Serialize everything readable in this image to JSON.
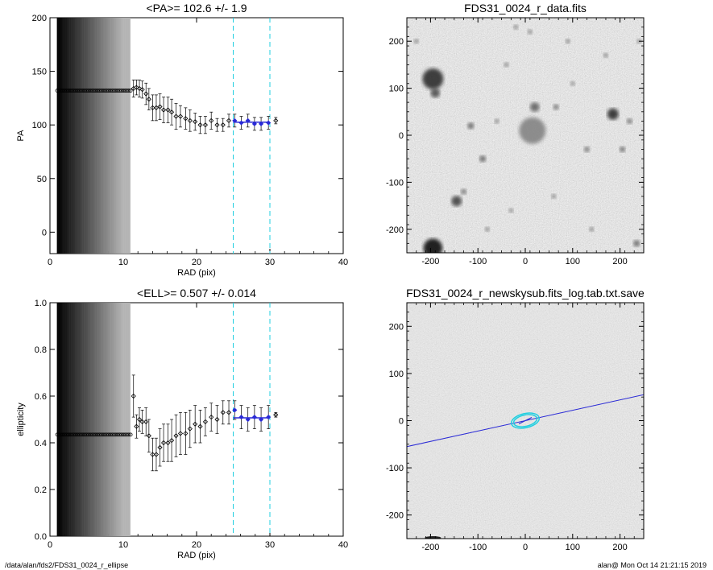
{
  "footer": {
    "path": "/data/alan/fds2/FDS31_0024_r_ellipse",
    "stamp": "alan@  Mon Oct 14 21:21:15 2019"
  },
  "chart_data": [
    {
      "type": "scatter",
      "title": "<PA>= 102.6 +/-   1.9",
      "xlabel": "RAD (pix)",
      "ylabel": "PA",
      "xlim": [
        0,
        40
      ],
      "ylim": [
        -20,
        200
      ],
      "xticks": [
        0,
        10,
        20,
        30,
        40
      ],
      "yticks": [
        0,
        50,
        100,
        150,
        200
      ],
      "vlines": [
        25,
        30
      ],
      "fit_mean": 102.6,
      "fit_err": 1.9,
      "fit_range": [
        25,
        30
      ],
      "inner_level": 132,
      "inner_range": [
        1,
        11
      ],
      "errorbars": true,
      "x": [
        11.4,
        11.8,
        12.2,
        12.6,
        13.1,
        13.5,
        14.0,
        14.5,
        15.0,
        15.5,
        16.1,
        16.6,
        17.2,
        17.8,
        18.5,
        19.1,
        19.8,
        20.5,
        21.2,
        22.0,
        22.8,
        23.6,
        24.4,
        25.2,
        26.1,
        27.0,
        27.9,
        28.8,
        29.8,
        30.8
      ],
      "y": [
        134,
        135,
        134,
        133,
        129,
        124,
        116,
        116,
        117,
        114,
        114,
        112,
        108,
        108,
        106,
        104,
        103,
        100,
        100,
        104,
        100,
        100,
        104,
        104,
        102,
        104,
        101,
        101,
        102,
        104
      ],
      "err": [
        8,
        7,
        8,
        8,
        10,
        10,
        12,
        12,
        12,
        12,
        12,
        12,
        12,
        10,
        10,
        10,
        8,
        8,
        8,
        8,
        6,
        6,
        6,
        6,
        6,
        6,
        6,
        6,
        6,
        3
      ]
    },
    {
      "type": "scatter",
      "title": "<ELL>= 0.507 +/-  0.014",
      "xlabel": "RAD (pix)",
      "ylabel": "ellipticity",
      "xlim": [
        0,
        40
      ],
      "ylim": [
        0.0,
        1.0
      ],
      "xticks": [
        0,
        10,
        20,
        30,
        40
      ],
      "yticks": [
        0.0,
        0.2,
        0.4,
        0.6,
        0.8,
        1.0
      ],
      "ytick_labels": [
        "0.0",
        "0.2",
        "0.4",
        "0.6",
        "0.8",
        "1.0"
      ],
      "vlines": [
        25,
        30
      ],
      "fit_mean": 0.507,
      "fit_err": 0.014,
      "fit_range": [
        25,
        30
      ],
      "inner_level": 0.435,
      "inner_range": [
        1,
        11
      ],
      "errorbars": true,
      "x": [
        11.4,
        11.8,
        12.2,
        12.6,
        13.1,
        13.5,
        14.0,
        14.5,
        15.0,
        15.5,
        16.1,
        16.6,
        17.2,
        17.8,
        18.5,
        19.1,
        19.8,
        20.5,
        21.2,
        22.0,
        22.8,
        23.6,
        24.4,
        25.2,
        26.1,
        27.0,
        27.9,
        28.8,
        29.8,
        30.8
      ],
      "y": [
        0.6,
        0.47,
        0.5,
        0.49,
        0.49,
        0.43,
        0.35,
        0.35,
        0.38,
        0.4,
        0.4,
        0.41,
        0.43,
        0.44,
        0.44,
        0.46,
        0.48,
        0.47,
        0.49,
        0.51,
        0.5,
        0.53,
        0.53,
        0.54,
        0.51,
        0.5,
        0.51,
        0.5,
        0.51,
        0.52
      ],
      "err": [
        0.09,
        0.05,
        0.05,
        0.05,
        0.06,
        0.07,
        0.07,
        0.07,
        0.08,
        0.08,
        0.08,
        0.09,
        0.09,
        0.09,
        0.09,
        0.08,
        0.08,
        0.07,
        0.06,
        0.06,
        0.06,
        0.05,
        0.05,
        0.04,
        0.05,
        0.05,
        0.05,
        0.05,
        0.05,
        0.01
      ]
    },
    {
      "type": "heatmap",
      "title": "FDS31_0024_r_data.fits",
      "xlim": [
        -250,
        250
      ],
      "ylim": [
        -250,
        250
      ],
      "xticks": [
        -200,
        -100,
        0,
        100,
        200
      ],
      "yticks": [
        -200,
        -100,
        0,
        100,
        200
      ],
      "sources": [
        {
          "x": -195,
          "y": 120,
          "r": 22,
          "v": 0.85
        },
        {
          "x": -190,
          "y": 90,
          "r": 10,
          "v": 0.7
        },
        {
          "x": -195,
          "y": -240,
          "r": 20,
          "v": 1.0
        },
        {
          "x": 15,
          "y": 10,
          "r": 28,
          "v": 0.45
        },
        {
          "x": 20,
          "y": 60,
          "r": 10,
          "v": 0.6
        },
        {
          "x": 185,
          "y": 45,
          "r": 12,
          "v": 0.85
        },
        {
          "x": -145,
          "y": -140,
          "r": 11,
          "v": 0.75
        },
        {
          "x": -115,
          "y": 20,
          "r": 7,
          "v": 0.6
        },
        {
          "x": -130,
          "y": -120,
          "r": 6,
          "v": 0.55
        },
        {
          "x": -90,
          "y": -50,
          "r": 7,
          "v": 0.6
        },
        {
          "x": 65,
          "y": 60,
          "r": 6,
          "v": 0.55
        },
        {
          "x": 130,
          "y": -30,
          "r": 6,
          "v": 0.55
        },
        {
          "x": 205,
          "y": -30,
          "r": 6,
          "v": 0.6
        },
        {
          "x": 220,
          "y": 30,
          "r": 6,
          "v": 0.55
        },
        {
          "x": 235,
          "y": -230,
          "r": 7,
          "v": 0.6
        },
        {
          "x": -40,
          "y": 150,
          "r": 5,
          "v": 0.5
        },
        {
          "x": 10,
          "y": 220,
          "r": 5,
          "v": 0.5
        },
        {
          "x": 90,
          "y": 200,
          "r": 5,
          "v": 0.5
        },
        {
          "x": 170,
          "y": 170,
          "r": 5,
          "v": 0.5
        },
        {
          "x": -60,
          "y": 30,
          "r": 5,
          "v": 0.5
        },
        {
          "x": 60,
          "y": -130,
          "r": 5,
          "v": 0.5
        },
        {
          "x": -80,
          "y": -200,
          "r": 5,
          "v": 0.5
        },
        {
          "x": 140,
          "y": -200,
          "r": 5,
          "v": 0.5
        },
        {
          "x": -230,
          "y": 200,
          "r": 5,
          "v": 0.5
        },
        {
          "x": -30,
          "y": -160,
          "r": 5,
          "v": 0.45
        },
        {
          "x": 100,
          "y": 110,
          "r": 5,
          "v": 0.45
        },
        {
          "x": -20,
          "y": 230,
          "r": 5,
          "v": 0.5
        },
        {
          "x": 240,
          "y": 200,
          "r": 5,
          "v": 0.45
        }
      ]
    },
    {
      "type": "heatmap",
      "title": "FDS31_0024_r_newskysub.fits_log.tab.txt.save",
      "xlim": [
        -250,
        250
      ],
      "ylim": [
        -250,
        250
      ],
      "xticks": [
        -200,
        -100,
        0,
        100,
        200
      ],
      "yticks": [
        -200,
        -100,
        0,
        100,
        200
      ],
      "line": {
        "x1": -250,
        "y1": -55,
        "x2": 250,
        "y2": 55
      },
      "ellipses": [
        {
          "rx": 25,
          "ry": 12,
          "angle_deg": 12.6
        },
        {
          "rx": 30,
          "ry": 15,
          "angle_deg": 12.6
        }
      ],
      "colors": {
        "line": "#2a2ad6",
        "ellipse": "#22cfe0",
        "fit": "#2a2ad6"
      }
    }
  ]
}
